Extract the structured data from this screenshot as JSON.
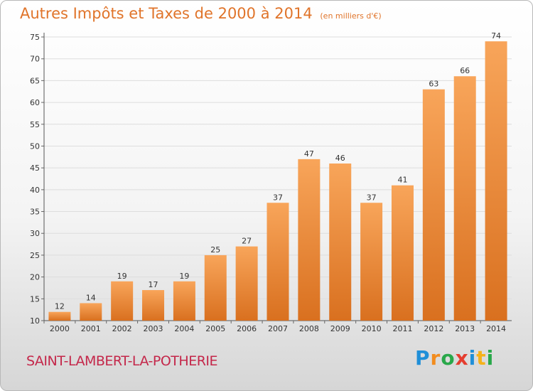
{
  "title": "Autres Impôts et Taxes de 2000 à 2014",
  "subtitle": "(en milliers d'€)",
  "commune": "SAINT-LAMBERT-LA-POTHERIE",
  "brand": {
    "letters": [
      {
        "ch": "P",
        "color": "#1f8fd8"
      },
      {
        "ch": "r",
        "color": "#f28c1e"
      },
      {
        "ch": "o",
        "color": "#29a84a"
      },
      {
        "ch": "x",
        "color": "#e53d2f"
      },
      {
        "ch": "i",
        "color": "#1f8fd8"
      },
      {
        "ch": "t",
        "color": "#f5b21a"
      },
      {
        "ch": "i",
        "color": "#29a84a"
      }
    ]
  },
  "colors": {
    "bar_top": "#f8a55a",
    "bar_bottom": "#d9701f",
    "title": "#e0742a",
    "commune": "#c4274a"
  },
  "chart_data": {
    "type": "bar",
    "categories": [
      "2000",
      "2001",
      "2002",
      "2003",
      "2004",
      "2005",
      "2006",
      "2007",
      "2008",
      "2009",
      "2010",
      "2011",
      "2012",
      "2013",
      "2014"
    ],
    "values": [
      12,
      14,
      19,
      17,
      19,
      25,
      27,
      37,
      47,
      46,
      37,
      41,
      63,
      66,
      74
    ],
    "ylim": [
      10,
      75
    ],
    "yticks": [
      10,
      15,
      20,
      25,
      30,
      35,
      40,
      45,
      50,
      55,
      60,
      65,
      70,
      75
    ],
    "grid": true,
    "legend": "none"
  }
}
